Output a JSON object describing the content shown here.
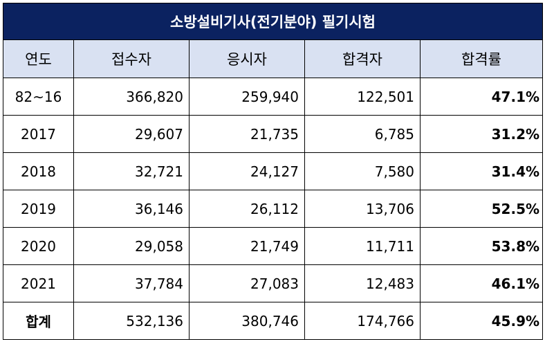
{
  "title": "소방설비기사(전기분야) 필기시험",
  "headers": [
    "연도",
    "접수자",
    "응시자",
    "합격자",
    "합격률"
  ],
  "rows": [
    {
      "year": "82~16",
      "applicants": "366,820",
      "examinees": "259,940",
      "passers": "122,501",
      "rate": "47.1%"
    },
    {
      "year": "2017",
      "applicants": "29,607",
      "examinees": "21,735",
      "passers": "6,785",
      "rate": "31.2%"
    },
    {
      "year": "2018",
      "applicants": "32,721",
      "examinees": "24,127",
      "passers": "7,580",
      "rate": "31.4%"
    },
    {
      "year": "2019",
      "applicants": "36,146",
      "examinees": "26,112",
      "passers": "13,706",
      "rate": "52.5%"
    },
    {
      "year": "2020",
      "applicants": "29,058",
      "examinees": "21,749",
      "passers": "11,711",
      "rate": "53.8%"
    },
    {
      "year": "2021",
      "applicants": "37,784",
      "examinees": "27,083",
      "passers": "12,483",
      "rate": "46.1%"
    }
  ],
  "total": {
    "label": "합계",
    "applicants": "532,136",
    "examinees": "380,746",
    "passers": "174,766",
    "rate": "45.9%"
  },
  "colors": {
    "title_bg": "#0b2260",
    "header_bg": "#d9e1f2"
  }
}
